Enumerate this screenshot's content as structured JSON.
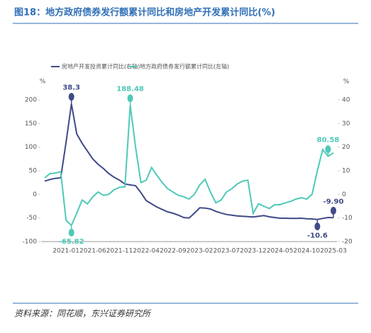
{
  "chart_data": {
    "type": "line",
    "title": "图18：地方政府债券发行额累计同比和房地产开发累计同比(%)",
    "source": "资料来源：同花顺，东兴证券研究所",
    "y_unit": "%",
    "y2_unit": "%",
    "categories": [
      null,
      null,
      null,
      null,
      "2021-01",
      null,
      null,
      null,
      null,
      "2021-06",
      null,
      null,
      null,
      null,
      "2021-11",
      null,
      null,
      null,
      null,
      "2022-04",
      null,
      null,
      null,
      null,
      "2022-09",
      null,
      null,
      null,
      null,
      "2023-02",
      null,
      null,
      null,
      null,
      "2023-07",
      null,
      null,
      null,
      null,
      "2023-12",
      null,
      null,
      null,
      null,
      "2024-05",
      null,
      null,
      null,
      null,
      "2024-10",
      null,
      null,
      null,
      null,
      "2025-03"
    ],
    "ylim": [
      -100,
      200
    ],
    "yticks": [
      -100,
      -50,
      0,
      50,
      100,
      150,
      200
    ],
    "y2lim": [
      -20,
      40
    ],
    "y2ticks": [
      -20,
      -10,
      0,
      10,
      20,
      30,
      40
    ],
    "legend": "top-left",
    "series": [
      {
        "name": "房地产开发投资累计同比(右轴)",
        "color": "#3f4a87",
        "axis": "y2",
        "values": [
          5.6,
          6.3,
          6.8,
          7.0,
          22,
          38.3,
          25.6,
          21.6,
          18.3,
          15.0,
          12.7,
          10.9,
          8.8,
          7.2,
          6.0,
          4.4,
          4.0,
          3.7,
          0.7,
          -2.7,
          -4.0,
          -5.4,
          -6.4,
          -7.4,
          -8.0,
          -8.8,
          -9.8,
          -10.0,
          -8,
          -5.7,
          -5.8,
          -6.2,
          -7.2,
          -7.9,
          -8.5,
          -8.8,
          -9.1,
          -9.3,
          -9.4,
          -9.6,
          -9.3,
          -9.0,
          -9.5,
          -9.8,
          -10.1,
          -10.1,
          -10.2,
          -10.2,
          -10.1,
          -10.3,
          -10.4,
          -10.6,
          -10.2,
          -9.8,
          -9.9
        ],
        "value_labels": [
          null,
          null,
          null,
          null,
          null,
          "38.3",
          null,
          null,
          null,
          null,
          null,
          null,
          null,
          null,
          null,
          null,
          null,
          null,
          null,
          null,
          null,
          null,
          null,
          null,
          null,
          null,
          null,
          null,
          null,
          null,
          null,
          null,
          null,
          null,
          null,
          null,
          null,
          null,
          null,
          null,
          null,
          null,
          null,
          null,
          null,
          null,
          null,
          null,
          null,
          null,
          null,
          "-10.6",
          null,
          null,
          "-9.90"
        ]
      },
      {
        "name": "地方政府债券发行额累计同比(左轴)",
        "color": "#4fc9b8",
        "values": [
          35,
          44,
          45,
          48,
          -55,
          -65.82,
          -40,
          -12,
          -20,
          -5,
          5,
          -2,
          0,
          10,
          15,
          16,
          188.48,
          100,
          25,
          30,
          57,
          40,
          25,
          12,
          5,
          -2,
          -5,
          -10,
          0,
          20,
          32,
          5,
          -18,
          -12,
          5,
          12,
          22,
          28,
          30,
          -40,
          -20,
          -25,
          -30,
          -22,
          -22,
          -18,
          -15,
          -10,
          -7,
          -10,
          0,
          50,
          95,
          80.58,
          88
        ],
        "value_labels": [
          null,
          null,
          null,
          null,
          null,
          "-65.82",
          null,
          null,
          null,
          null,
          null,
          null,
          null,
          null,
          null,
          null,
          "188.48",
          null,
          null,
          null,
          null,
          null,
          null,
          null,
          null,
          null,
          null,
          null,
          null,
          null,
          null,
          null,
          null,
          null,
          null,
          null,
          null,
          null,
          null,
          null,
          null,
          null,
          null,
          null,
          null,
          null,
          null,
          null,
          null,
          null,
          null,
          null,
          null,
          "80.58",
          null
        ]
      }
    ]
  }
}
